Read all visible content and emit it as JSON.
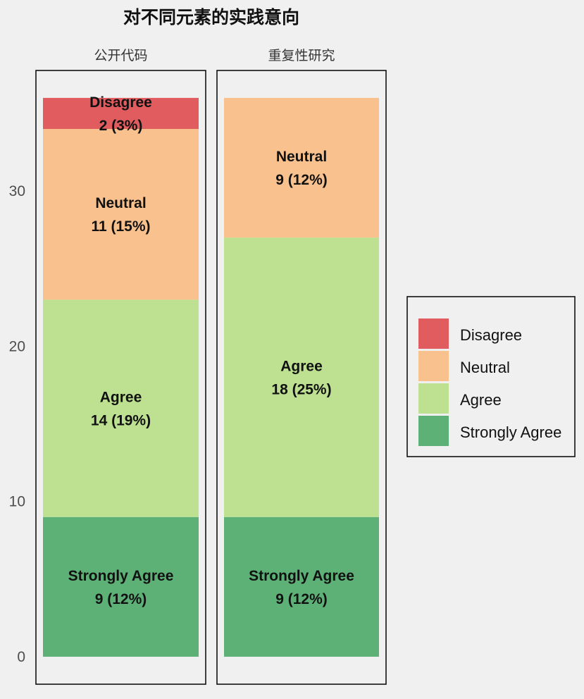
{
  "chart_data": {
    "type": "bar",
    "stacked": true,
    "title": "对不同元素的实践意向",
    "xlabel": "",
    "ylabel": "",
    "ylim": [
      0,
      36
    ],
    "yticks": [
      0,
      10,
      20,
      30
    ],
    "grid": false,
    "legend_position": "right",
    "categories": [
      "公开代码",
      "重复性研究"
    ],
    "series": [
      {
        "name": "Strongly Agree",
        "color": "#5db176",
        "values": [
          9,
          9
        ],
        "labels": [
          "9 (12%)",
          "9 (12%)"
        ]
      },
      {
        "name": "Agree",
        "color": "#bde191",
        "values": [
          14,
          18
        ],
        "labels": [
          "14 (19%)",
          "18 (25%)"
        ]
      },
      {
        "name": "Neutral",
        "color": "#f9c18d",
        "values": [
          11,
          9
        ],
        "labels": [
          "11 (15%)",
          "9 (12%)"
        ]
      },
      {
        "name": "Disagree",
        "color": "#e05c5e",
        "values": [
          2,
          0
        ],
        "labels": [
          "2 (3%)",
          ""
        ]
      }
    ],
    "legend_order": [
      "Disagree",
      "Neutral",
      "Agree",
      "Strongly Agree"
    ]
  }
}
